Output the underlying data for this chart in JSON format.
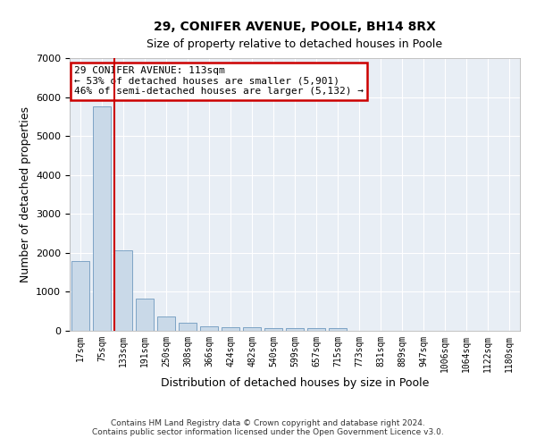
{
  "title1": "29, CONIFER AVENUE, POOLE, BH14 8RX",
  "title2": "Size of property relative to detached houses in Poole",
  "xlabel": "Distribution of detached houses by size in Poole",
  "ylabel": "Number of detached properties",
  "annotation_title": "29 CONIFER AVENUE: 113sqm",
  "annotation_line1": "← 53% of detached houses are smaller (5,901)",
  "annotation_line2": "46% of semi-detached houses are larger (5,132) →",
  "bar_color": "#c9d9e8",
  "bar_edge_color": "#5a8ab5",
  "marker_line_color": "#cc0000",
  "annotation_box_color": "#cc0000",
  "categories": [
    "17sqm",
    "75sqm",
    "133sqm",
    "191sqm",
    "250sqm",
    "308sqm",
    "366sqm",
    "424sqm",
    "482sqm",
    "540sqm",
    "599sqm",
    "657sqm",
    "715sqm",
    "773sqm",
    "831sqm",
    "889sqm",
    "947sqm",
    "1006sqm",
    "1064sqm",
    "1122sqm",
    "1180sqm"
  ],
  "values": [
    1780,
    5750,
    2060,
    830,
    360,
    210,
    120,
    95,
    95,
    80,
    70,
    65,
    60,
    0,
    0,
    0,
    0,
    0,
    0,
    0,
    0
  ],
  "ylim": [
    0,
    7000
  ],
  "yticks": [
    0,
    1000,
    2000,
    3000,
    4000,
    5000,
    6000,
    7000
  ],
  "footer1": "Contains HM Land Registry data © Crown copyright and database right 2024.",
  "footer2": "Contains public sector information licensed under the Open Government Licence v3.0.",
  "background_color": "#ffffff",
  "plot_background": "#e8eef5",
  "grid_color": "#ffffff",
  "marker_bar_index": 2
}
